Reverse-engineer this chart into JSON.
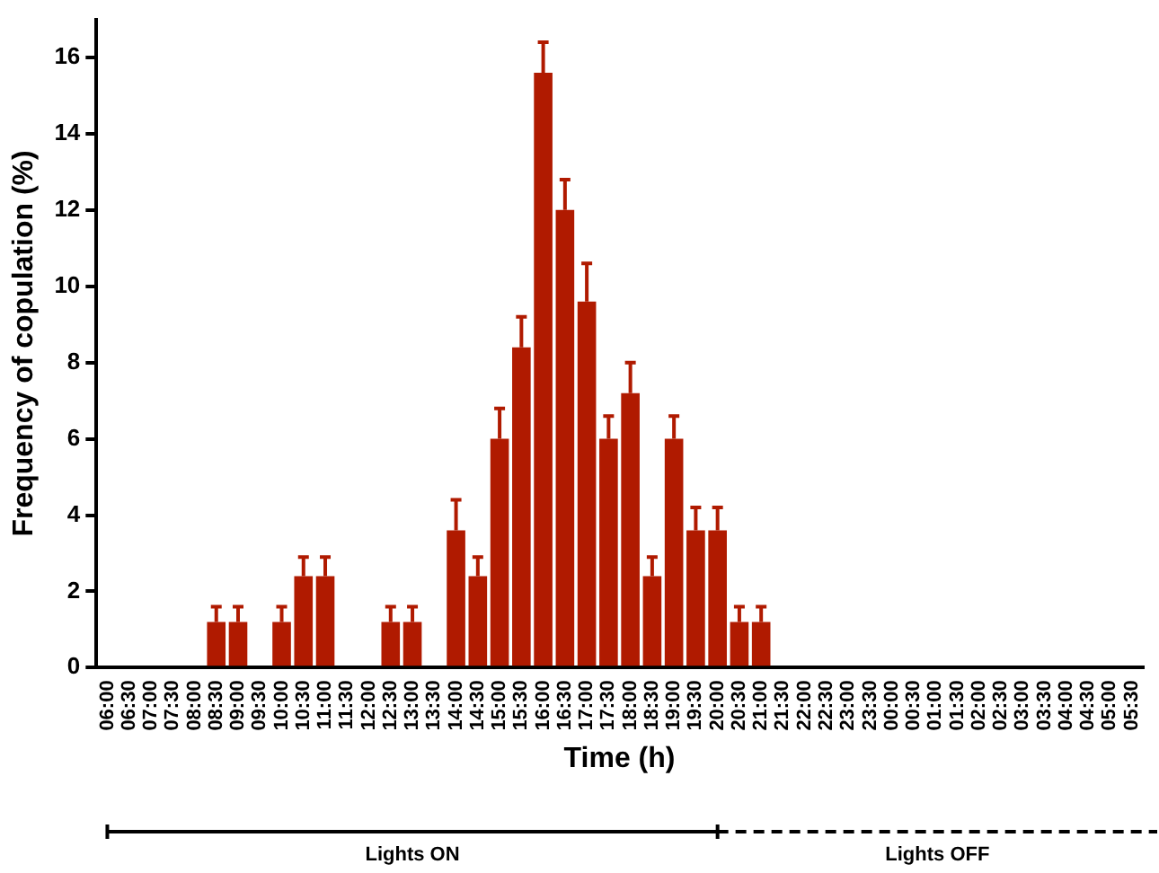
{
  "chart_data": {
    "type": "bar",
    "xlabel": "Time (h)",
    "ylabel": "Frequency of copulation (%)",
    "categories": [
      "06:00",
      "06:30",
      "07:00",
      "07:30",
      "08:00",
      "08:30",
      "09:00",
      "09:30",
      "10:00",
      "10:30",
      "11:00",
      "11:30",
      "12:00",
      "12:30",
      "13:00",
      "13:30",
      "14:00",
      "14:30",
      "15:00",
      "15:30",
      "16:00",
      "16:30",
      "17:00",
      "17:30",
      "18:00",
      "18:30",
      "19:00",
      "19:30",
      "20:00",
      "20:30",
      "21:00",
      "21:30",
      "22:00",
      "22:30",
      "23:00",
      "23:30",
      "00:00",
      "00:30",
      "01:00",
      "01:30",
      "02:00",
      "02:30",
      "03:00",
      "03:30",
      "04:00",
      "04:30",
      "05:00",
      "05:30"
    ],
    "values": [
      0,
      0,
      0,
      0,
      0,
      1.2,
      1.2,
      0,
      1.2,
      2.4,
      2.4,
      0,
      0,
      1.2,
      1.2,
      0,
      3.6,
      2.4,
      6.0,
      8.4,
      15.6,
      12.0,
      9.6,
      6.0,
      7.2,
      2.4,
      6.0,
      3.6,
      3.6,
      1.2,
      1.2,
      0,
      0,
      0,
      0,
      0,
      0,
      0,
      0,
      0,
      0,
      0,
      0,
      0,
      0,
      0,
      0,
      0
    ],
    "errors": [
      null,
      null,
      null,
      null,
      null,
      0.4,
      0.4,
      null,
      0.4,
      0.5,
      0.5,
      null,
      null,
      0.4,
      0.4,
      null,
      0.8,
      0.5,
      0.8,
      0.8,
      0.8,
      0.8,
      1.0,
      0.6,
      0.8,
      0.5,
      0.6,
      0.6,
      0.6,
      0.4,
      0.4,
      null,
      null,
      null,
      null,
      null,
      null,
      null,
      null,
      null,
      null,
      null,
      null,
      null,
      null,
      null,
      null,
      null
    ],
    "color": "#b01a00",
    "ylim": [
      0,
      17
    ],
    "yticks": [
      0,
      2,
      4,
      6,
      8,
      10,
      12,
      14,
      16
    ],
    "grid": false,
    "legend": false,
    "annotations": [
      "Lights ON",
      "Lights OFF"
    ]
  }
}
